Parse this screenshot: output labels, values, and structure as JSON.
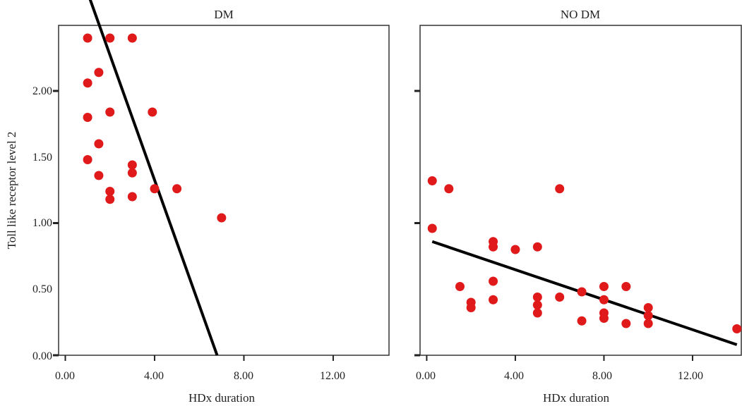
{
  "chart_data": {
    "type": "scatter",
    "ylabel": "Toll like receptor level 2",
    "ylim": [
      0,
      2.5
    ],
    "yticks": [
      "0.00",
      "0.50",
      "1.00",
      "1.50",
      "2.00"
    ],
    "yticks_values": [
      0,
      0.5,
      1,
      1.5,
      2
    ],
    "xticks": [
      "0.00",
      "4.00",
      "8.00",
      "12.00"
    ],
    "xticks_values": [
      0,
      4,
      8,
      12
    ],
    "grid": false,
    "marker_color": "#e01a1a",
    "fit_line_color": "#000000",
    "panels": [
      {
        "title": "DM",
        "xlabel": "HDx duration",
        "xlim": [
          -0.3,
          14.5
        ],
        "points": [
          [
            0.25,
            2.4
          ],
          [
            0.25,
            2.1
          ],
          [
            0.25,
            1.9
          ],
          [
            0.45,
            1.9
          ],
          [
            0.5,
            1.8
          ],
          [
            0.5,
            1.7
          ],
          [
            1.0,
            1.7
          ],
          [
            0.25,
            1.6
          ],
          [
            1.0,
            1.5
          ],
          [
            0.25,
            1.4
          ],
          [
            1.0,
            1.2
          ],
          [
            2.0,
            1.2
          ],
          [
            3.0,
            1.2
          ],
          [
            1.5,
            1.07
          ],
          [
            1.0,
            1.03
          ],
          [
            2.0,
            0.92
          ],
          [
            3.9,
            0.92
          ],
          [
            1.0,
            0.9
          ],
          [
            1.5,
            0.8
          ],
          [
            1.0,
            0.74
          ],
          [
            3.0,
            0.72
          ],
          [
            3.0,
            0.69
          ],
          [
            1.5,
            0.68
          ],
          [
            2.0,
            0.62
          ],
          [
            2.0,
            0.59
          ],
          [
            3.0,
            0.6
          ],
          [
            4.0,
            0.63
          ],
          [
            5.0,
            0.63
          ],
          [
            7.0,
            0.52
          ]
        ],
        "fit_line": [
          [
            0.25,
            1.55
          ],
          [
            6.8,
            0.0
          ]
        ]
      },
      {
        "title": "NO DM",
        "xlabel": "HDx duration",
        "xlim": [
          -0.3,
          14.2
        ],
        "points": [
          [
            0.25,
            0.66
          ],
          [
            1.0,
            0.63
          ],
          [
            6.0,
            0.63
          ],
          [
            0.25,
            0.48
          ],
          [
            3.0,
            0.43
          ],
          [
            3.0,
            0.41
          ],
          [
            4.0,
            0.4
          ],
          [
            5.0,
            0.41
          ],
          [
            1.5,
            0.26
          ],
          [
            3.0,
            0.28
          ],
          [
            3.0,
            0.21
          ],
          [
            2.0,
            0.2
          ],
          [
            2.0,
            0.18
          ],
          [
            5.0,
            0.22
          ],
          [
            5.0,
            0.19
          ],
          [
            5.0,
            0.16
          ],
          [
            6.0,
            0.22
          ],
          [
            7.0,
            0.24
          ],
          [
            7.0,
            0.13
          ],
          [
            8.0,
            0.26
          ],
          [
            8.0,
            0.21
          ],
          [
            8.0,
            0.16
          ],
          [
            8.0,
            0.14
          ],
          [
            9.0,
            0.26
          ],
          [
            9.0,
            0.12
          ],
          [
            10.0,
            0.18
          ],
          [
            10.0,
            0.15
          ],
          [
            10.0,
            0.12
          ],
          [
            14.0,
            0.1
          ]
        ],
        "fit_line": [
          [
            0.25,
            0.43
          ],
          [
            14.0,
            0.04
          ]
        ]
      }
    ]
  }
}
